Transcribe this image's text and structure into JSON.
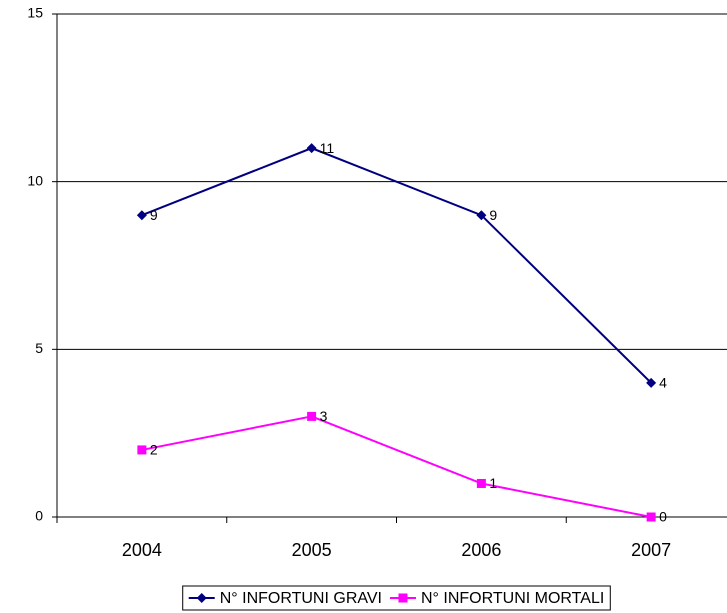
{
  "chart_data": {
    "type": "line",
    "categories": [
      "2004",
      "2005",
      "2006",
      "2007"
    ],
    "series": [
      {
        "name": "N° INFORTUNI GRAVI",
        "color": "#000080",
        "marker": "diamond",
        "values": [
          9,
          11,
          9,
          4
        ]
      },
      {
        "name": "N° INFORTUNI MORTALI",
        "color": "#ff00ff",
        "marker": "square",
        "values": [
          2,
          3,
          1,
          0
        ]
      }
    ],
    "ylim": [
      0,
      15
    ],
    "yticks": [
      0,
      5,
      10,
      15
    ],
    "grid": true,
    "legend": "bottom"
  }
}
